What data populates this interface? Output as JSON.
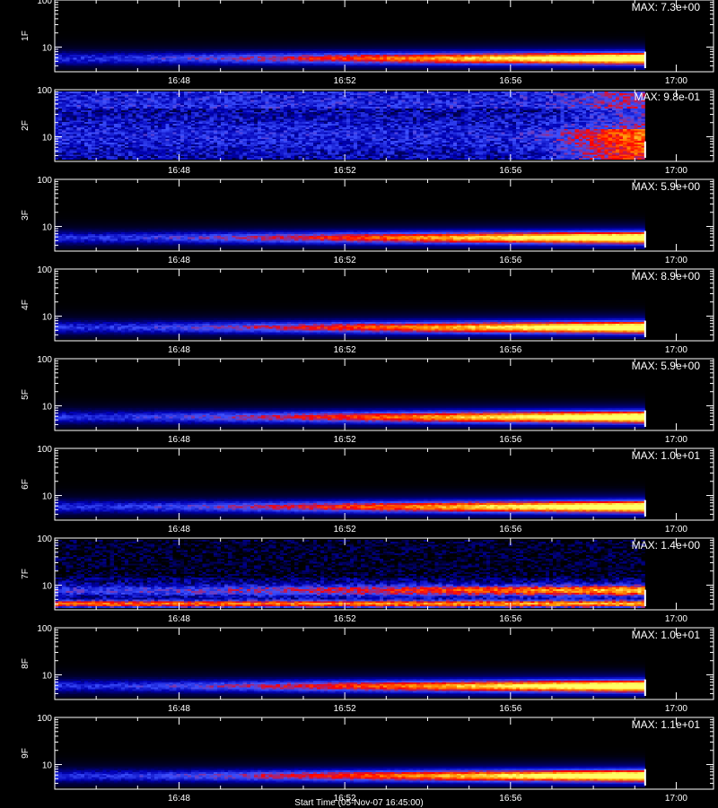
{
  "chart_data": {
    "type": "heatmap",
    "x_tick_labels": [
      "16:48",
      "16:52",
      "16:56",
      "17:00"
    ],
    "x_ticks_min": [
      288,
      292,
      296,
      300
    ],
    "x_range_min": [
      285.0,
      300.9
    ],
    "y_scale": "log",
    "y_tick_labels": [
      "10",
      "100"
    ],
    "y_ticks": [
      10,
      100
    ],
    "y_range": [
      3,
      100
    ],
    "data_end_min": 299.25,
    "colormap": [
      "#000000",
      "#0000b4",
      "#3c50ff",
      "#ff0000",
      "#ff8c00",
      "#ffff64"
    ],
    "panels": [
      {
        "label": "1F",
        "max_label": "MAX: 7.3e+00",
        "pattern": "band"
      },
      {
        "label": "2F",
        "max_label": "MAX: 9.8e-01",
        "pattern": "diffuse"
      },
      {
        "label": "3F",
        "max_label": "MAX: 5.9e+00",
        "pattern": "band"
      },
      {
        "label": "4F",
        "max_label": "MAX: 8.9e+00",
        "pattern": "band"
      },
      {
        "label": "5F",
        "max_label": "MAX: 5.9e+00",
        "pattern": "band"
      },
      {
        "label": "6F",
        "max_label": "MAX: 1.0e+01",
        "pattern": "band"
      },
      {
        "label": "7F",
        "max_label": "MAX: 1.4e+00",
        "pattern": "double"
      },
      {
        "label": "8F",
        "max_label": "MAX: 1.0e+01",
        "pattern": "band"
      },
      {
        "label": "9F",
        "max_label": "MAX: 1.1e+01",
        "pattern": "band"
      }
    ]
  },
  "footer_text": "Start Time (05-Nov-07 16:45:00)"
}
